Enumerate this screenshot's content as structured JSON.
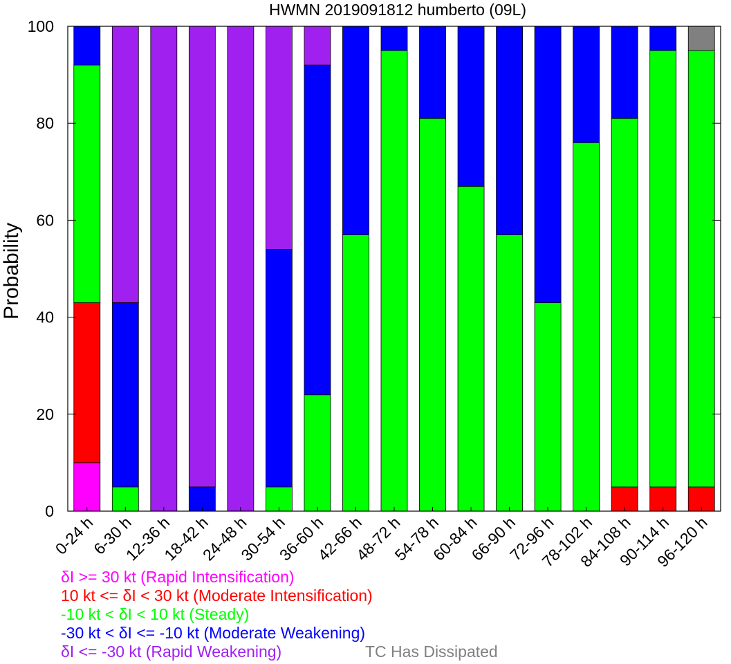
{
  "chart_data": {
    "type": "bar",
    "stacked": true,
    "title": "HWMN 2019091812 humberto (09L)",
    "xlabel": "",
    "ylabel": "Probability",
    "ylim": [
      0,
      100
    ],
    "yticks": [
      "0",
      "20",
      "40",
      "60",
      "80",
      "100"
    ],
    "grid": false,
    "legend_position": "bottom-left",
    "categories": [
      "0-24 h",
      "6-30 h",
      "12-36 h",
      "18-42 h",
      "24-48 h",
      "30-54 h",
      "36-60 h",
      "42-66 h",
      "48-72 h",
      "54-78 h",
      "60-84 h",
      "66-90 h",
      "72-96 h",
      "78-102 h",
      "84-108 h",
      "90-114 h",
      "96-120 h"
    ],
    "series": [
      {
        "name": "δI >= 30 kt (Rapid Intensification)",
        "color": "#ff00ff",
        "values": [
          10,
          0,
          0,
          0,
          0,
          0,
          0,
          0,
          0,
          0,
          0,
          0,
          0,
          0,
          0,
          0,
          0
        ]
      },
      {
        "name": "10 kt <= δI < 30 kt (Moderate Intensification)",
        "color": "#ff0000",
        "values": [
          33,
          0,
          0,
          0,
          0,
          0,
          0,
          0,
          0,
          0,
          0,
          0,
          0,
          0,
          5,
          5,
          5
        ]
      },
      {
        "name": "-10 kt < δI < 10 kt (Steady)",
        "color": "#00ff00",
        "values": [
          49,
          5,
          0,
          0,
          0,
          5,
          24,
          57,
          95,
          81,
          67,
          57,
          43,
          76,
          76,
          90,
          90
        ]
      },
      {
        "name": "-30 kt < δI <= -10 kt (Moderate Weakening)",
        "color": "#0000ff",
        "values": [
          8,
          38,
          0,
          5,
          0,
          49,
          68,
          43,
          5,
          19,
          33,
          43,
          57,
          24,
          19,
          5,
          0
        ]
      },
      {
        "name": "δI <= -30 kt (Rapid Weakening)",
        "color": "#a020f0",
        "values": [
          0,
          57,
          100,
          95,
          100,
          46,
          8,
          0,
          0,
          0,
          0,
          0,
          0,
          0,
          0,
          0,
          0
        ]
      },
      {
        "name": "TC Has Dissipated",
        "color": "#808080",
        "values": [
          0,
          0,
          0,
          0,
          0,
          0,
          0,
          0,
          0,
          0,
          0,
          0,
          0,
          0,
          0,
          0,
          5
        ]
      }
    ]
  },
  "legend": [
    {
      "prefix": "",
      "symbol": "δ",
      "rest": "I >= 30 kt (Rapid Intensification)",
      "color": "#ff00ff"
    },
    {
      "prefix": "10 kt <= ",
      "symbol": "δ",
      "rest": "I < 30 kt (Moderate Intensification)",
      "color": "#ff0000"
    },
    {
      "prefix": "-10 kt < ",
      "symbol": "δ",
      "rest": "I < 10 kt (Steady)",
      "color": "#00ff00"
    },
    {
      "prefix": "-30 kt < ",
      "symbol": "δ",
      "rest": "I <= -10 kt (Moderate Weakening)",
      "color": "#0000ff"
    },
    {
      "prefix": "",
      "symbol": "δ",
      "rest": "I <= -30 kt (Rapid Weakening)",
      "color": "#a020f0"
    },
    {
      "prefix": "",
      "symbol": "",
      "rest": "TC Has Dissipated",
      "color": "#808080"
    }
  ]
}
